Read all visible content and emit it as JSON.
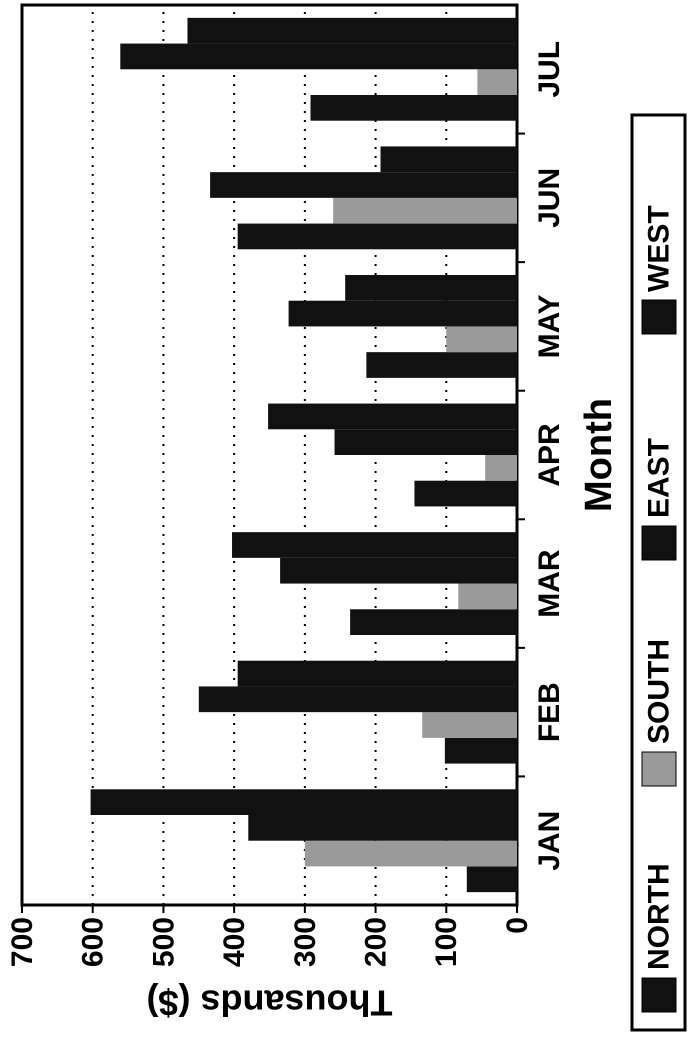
{
  "chart_data": {
    "type": "bar",
    "x_label": "Month",
    "y_label": "Thousands ($)",
    "categories": [
      "JAN",
      "FEB",
      "MAR",
      "APR",
      "MAY",
      "JUN",
      "JUL"
    ],
    "series": [
      {
        "name": "NORTH",
        "color": "#111111",
        "values": [
          71,
          102,
          236,
          145,
          213,
          395,
          292
        ]
      },
      {
        "name": "SOUTH",
        "color": "#9a9a9a",
        "values": [
          300,
          134,
          83,
          45,
          100,
          260,
          56
        ]
      },
      {
        "name": "EAST",
        "color": "#111111",
        "values": [
          380,
          450,
          335,
          258,
          323,
          434,
          561
        ]
      },
      {
        "name": "WEST",
        "color": "#111111",
        "values": [
          603,
          395,
          403,
          352,
          243,
          193,
          466
        ]
      }
    ],
    "ylim": [
      0,
      700
    ],
    "yticks": [
      0,
      100,
      200,
      300,
      400,
      500,
      600,
      700
    ],
    "grid": true,
    "legend": "right"
  }
}
